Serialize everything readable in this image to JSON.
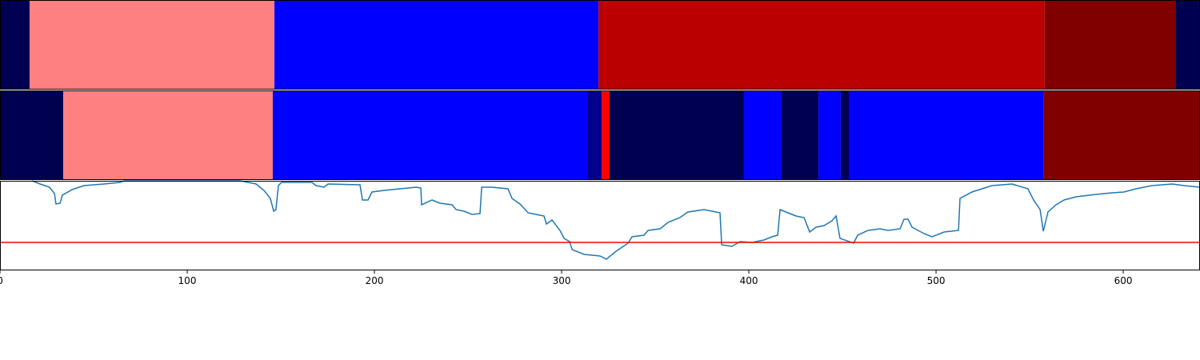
{
  "chart_data": [
    {
      "type": "segments",
      "xlim": [
        0,
        641
      ],
      "bins": [
        0,
        15.8,
        146.6,
        319.7,
        558,
        628,
        641
      ],
      "colors": [
        "#000050",
        "#ff8080",
        "#0000ff",
        "#bb0000",
        "#800000",
        "#000050"
      ]
    },
    {
      "type": "segments",
      "xlim": [
        0,
        641
      ],
      "bins": [
        0,
        33.8,
        145.7,
        313.7,
        321.4,
        325.6,
        397.4,
        417.5,
        437.2,
        449.1,
        453.4,
        557.3,
        641
      ],
      "colors": [
        "#000050",
        "#ff8080",
        "#0000ff",
        "#00008c",
        "#ff0000",
        "#000050",
        "#0000ff",
        "#000050",
        "#0000ff",
        "#000050",
        "#0000ff",
        "#800000"
      ]
    },
    {
      "type": "line",
      "xlim": [
        0,
        641
      ],
      "ylim": [
        0,
        112
      ],
      "xticks": [
        0,
        100,
        200,
        300,
        400,
        500,
        600
      ],
      "color": "#1f77b4",
      "hline": {
        "value": 35,
        "color": "#ff0000"
      },
      "x": [
        17.1,
        21.4,
        26.5,
        29.1,
        29.9,
        32.1,
        33.3,
        38.5,
        44.9,
        55.6,
        64.1,
        66.2,
        98.3,
        128.2,
        136.8,
        141,
        144.4,
        146.2,
        147.4,
        148.7,
        150.4,
        166.7,
        168.8,
        173.1,
        175.2,
        192.3,
        193.6,
        196.6,
        198.7,
        205.1,
        213.7,
        222.2,
        224.8,
        225.2,
        230.8,
        235,
        241.5,
        243.6,
        247.9,
        252.1,
        256.4,
        257.3,
        262.8,
        271.4,
        273.5,
        277.8,
        282.1,
        286.3,
        290.6,
        291.9,
        294.9,
        299.1,
        301.3,
        304.3,
        305.6,
        312,
        320.5,
        323.9,
        329.1,
        335.5,
        337.6,
        344,
        346.2,
        352.6,
        356.8,
        363.2,
        367.5,
        376.1,
        384.6,
        385.5,
        391,
        395.3,
        401.7,
        408.1,
        412.4,
        415.4,
        416.7,
        420.9,
        425.2,
        429.5,
        432.5,
        435.9,
        440.2,
        444.4,
        446.6,
        448.7,
        456,
        458.1,
        463.7,
        470.1,
        474.4,
        480.8,
        482.9,
        485,
        487.2,
        493.6,
        497.9,
        504.3,
        512,
        512.8,
        519.2,
        529.9,
        540.6,
        549.1,
        552.1,
        555.6,
        557.3,
        559.8,
        564.1,
        568.4,
        574.8,
        585.5,
        594,
        600.4,
        606.8,
        615.4,
        626.1,
        632.5,
        641
      ],
      "values": [
        112,
        108,
        104,
        96,
        83,
        84,
        94,
        101,
        106,
        108,
        110,
        112,
        112,
        112,
        108,
        100,
        90,
        74,
        76,
        106,
        110,
        110,
        106,
        104,
        108,
        107,
        88,
        88,
        98,
        100,
        102,
        104,
        103,
        82,
        88,
        84,
        82,
        76,
        74,
        70,
        71,
        104,
        104,
        102,
        90,
        83,
        72,
        70,
        68,
        58,
        63,
        50,
        40,
        36,
        26,
        20,
        18,
        14,
        24,
        34,
        42,
        44,
        50,
        52,
        60,
        66,
        73,
        76,
        72,
        32,
        30,
        36,
        35,
        38,
        42,
        44,
        76,
        72,
        68,
        66,
        48,
        54,
        56,
        62,
        68,
        40,
        34,
        44,
        50,
        52,
        50,
        52,
        64,
        64,
        54,
        46,
        42,
        48,
        50,
        90,
        98,
        106,
        108,
        102,
        88,
        76,
        49,
        73,
        82,
        88,
        92,
        95,
        97,
        98,
        102,
        106,
        108,
        106,
        104
      ]
    }
  ]
}
